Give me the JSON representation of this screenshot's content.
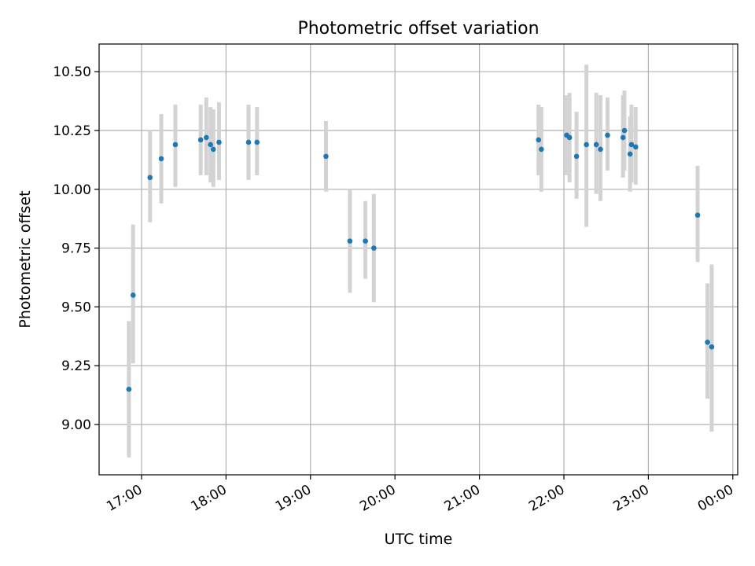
{
  "chart_data": {
    "type": "scatter",
    "title": "Photometric offset variation",
    "xlabel": "UTC time",
    "ylabel": "Photometric offset",
    "x_tick_labels": [
      "17:00",
      "18:00",
      "19:00",
      "20:00",
      "21:00",
      "22:00",
      "23:00",
      "00:00"
    ],
    "y_tick_labels": [
      "9.00",
      "9.25",
      "9.50",
      "9.75",
      "10.00",
      "10.25",
      "10.50"
    ],
    "ylim": [
      8.8,
      10.62
    ],
    "grid": true,
    "marker_color": "#1f77b4",
    "errorbar_color": "#d3d3d3",
    "points": [
      {
        "t": "16:51",
        "y": 9.15,
        "lo": 8.86,
        "hi": 9.44
      },
      {
        "t": "16:54",
        "y": 9.55,
        "lo": 9.26,
        "hi": 9.85
      },
      {
        "t": "17:06",
        "y": 10.05,
        "lo": 9.86,
        "hi": 10.25
      },
      {
        "t": "17:14",
        "y": 10.13,
        "lo": 9.94,
        "hi": 10.32
      },
      {
        "t": "17:24",
        "y": 10.19,
        "lo": 10.01,
        "hi": 10.36
      },
      {
        "t": "17:42",
        "y": 10.21,
        "lo": 10.06,
        "hi": 10.36
      },
      {
        "t": "17:46",
        "y": 10.22,
        "lo": 10.06,
        "hi": 10.39
      },
      {
        "t": "17:49",
        "y": 10.19,
        "lo": 10.03,
        "hi": 10.35
      },
      {
        "t": "17:51",
        "y": 10.17,
        "lo": 10.01,
        "hi": 10.34
      },
      {
        "t": "17:55",
        "y": 10.2,
        "lo": 10.04,
        "hi": 10.37
      },
      {
        "t": "18:16",
        "y": 10.2,
        "lo": 10.04,
        "hi": 10.36
      },
      {
        "t": "18:22",
        "y": 10.2,
        "lo": 10.06,
        "hi": 10.35
      },
      {
        "t": "19:11",
        "y": 10.14,
        "lo": 9.99,
        "hi": 10.29
      },
      {
        "t": "19:28",
        "y": 9.78,
        "lo": 9.56,
        "hi": 10.0
      },
      {
        "t": "19:39",
        "y": 9.78,
        "lo": 9.62,
        "hi": 9.95
      },
      {
        "t": "19:45",
        "y": 9.75,
        "lo": 9.52,
        "hi": 9.98
      },
      {
        "t": "21:42",
        "y": 10.21,
        "lo": 10.06,
        "hi": 10.36
      },
      {
        "t": "21:44",
        "y": 10.17,
        "lo": 9.99,
        "hi": 10.35
      },
      {
        "t": "22:02",
        "y": 10.23,
        "lo": 10.06,
        "hi": 10.4
      },
      {
        "t": "22:04",
        "y": 10.22,
        "lo": 10.03,
        "hi": 10.41
      },
      {
        "t": "22:09",
        "y": 10.14,
        "lo": 9.96,
        "hi": 10.33
      },
      {
        "t": "22:16",
        "y": 10.19,
        "lo": 9.84,
        "hi": 10.53
      },
      {
        "t": "22:23",
        "y": 10.19,
        "lo": 9.98,
        "hi": 10.41
      },
      {
        "t": "22:26",
        "y": 10.17,
        "lo": 9.95,
        "hi": 10.4
      },
      {
        "t": "22:31",
        "y": 10.23,
        "lo": 10.08,
        "hi": 10.39
      },
      {
        "t": "22:42",
        "y": 10.22,
        "lo": 10.05,
        "hi": 10.4
      },
      {
        "t": "22:43",
        "y": 10.25,
        "lo": 10.08,
        "hi": 10.42
      },
      {
        "t": "22:47",
        "y": 10.15,
        "lo": 9.99,
        "hi": 10.31
      },
      {
        "t": "22:48",
        "y": 10.19,
        "lo": 10.03,
        "hi": 10.36
      },
      {
        "t": "22:51",
        "y": 10.18,
        "lo": 10.02,
        "hi": 10.35
      },
      {
        "t": "23:35",
        "y": 9.89,
        "lo": 9.69,
        "hi": 10.1
      },
      {
        "t": "23:42",
        "y": 9.35,
        "lo": 9.11,
        "hi": 9.6
      },
      {
        "t": "23:45",
        "y": 9.33,
        "lo": 8.97,
        "hi": 9.68
      }
    ]
  }
}
